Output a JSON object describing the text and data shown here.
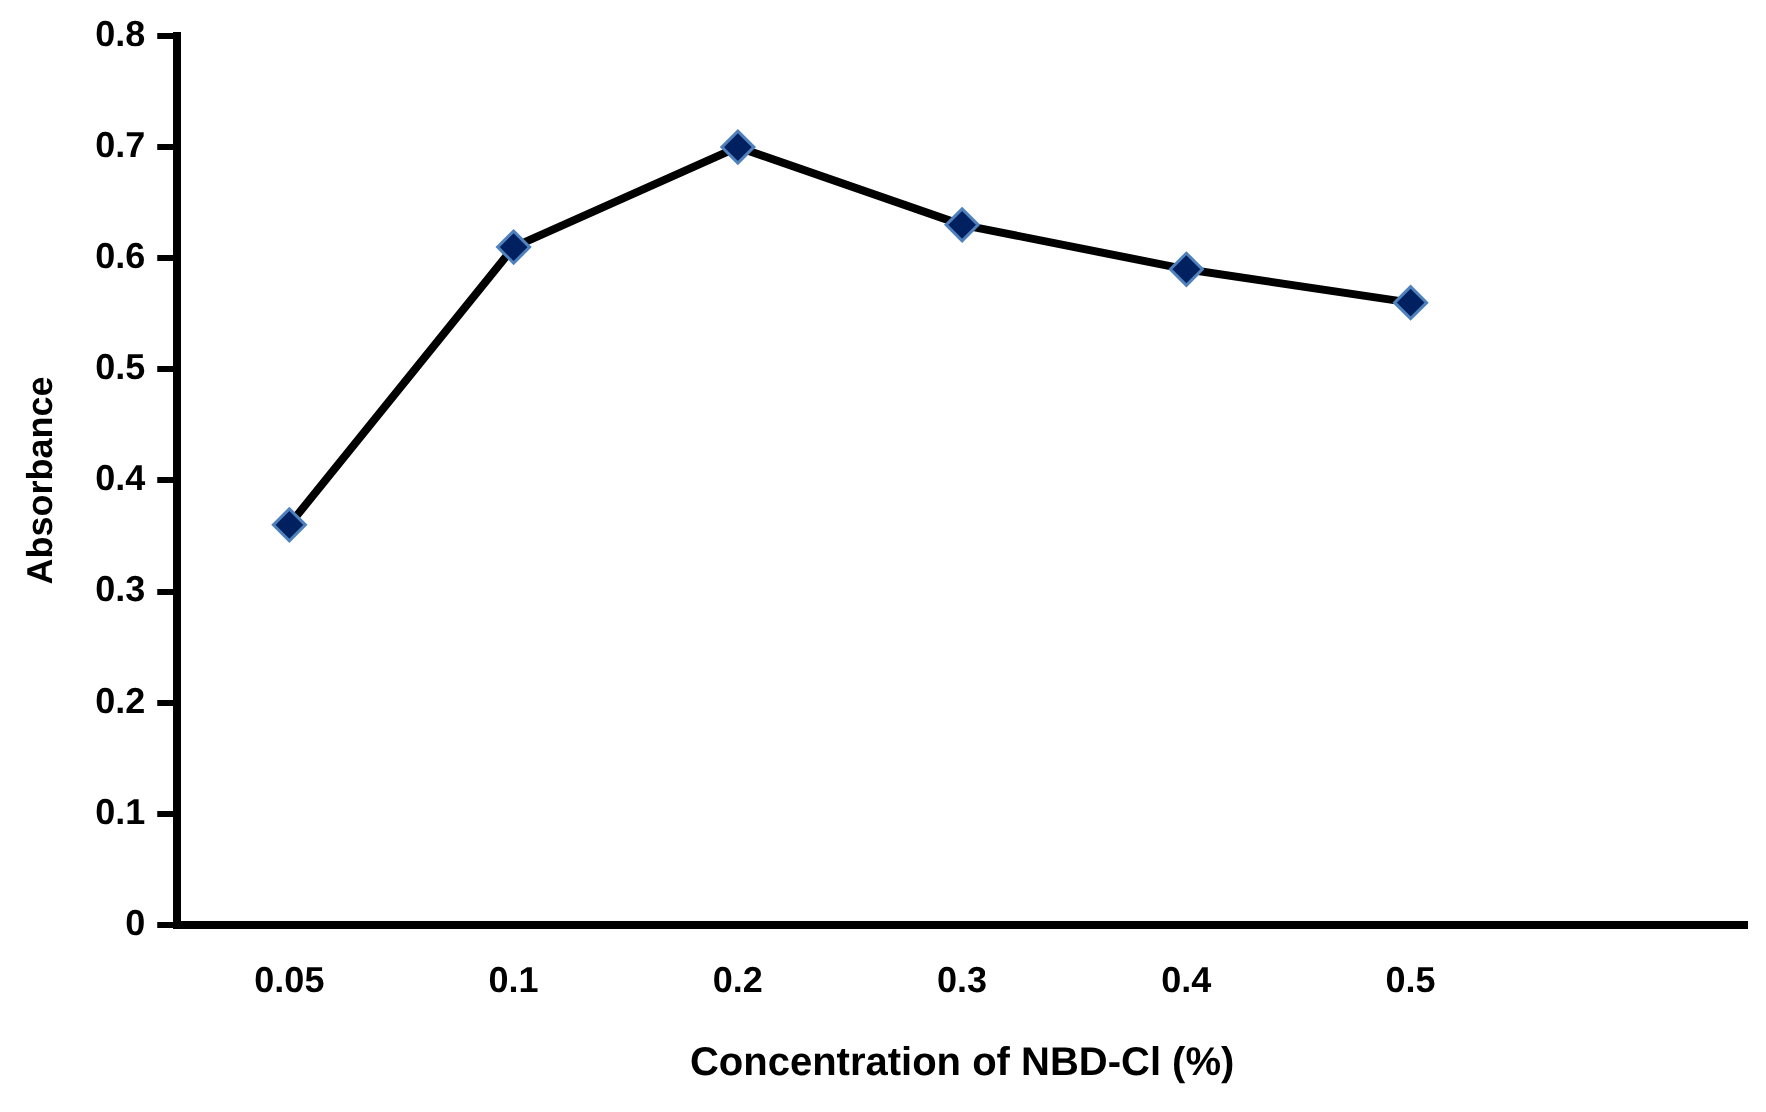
{
  "chart_data": {
    "type": "line",
    "xlabel": "Concentration of NBD-Cl (%)",
    "ylabel": "Absorbance",
    "categories": [
      "0.05",
      "0.1",
      "0.2",
      "0.3",
      "0.4",
      "0.5",
      null
    ],
    "series": [
      {
        "color": "#000000",
        "values": [
          0.36,
          0.61,
          0.7,
          0.63,
          0.59,
          0.56,
          null
        ]
      }
    ],
    "ylim": [
      0,
      0.8
    ],
    "yticks": [
      0,
      0.1,
      0.2,
      0.3,
      0.4,
      0.5,
      0.6,
      0.7,
      0.8
    ],
    "grid": false,
    "legend": false,
    "marker": "diamond",
    "line_style": "solid"
  }
}
